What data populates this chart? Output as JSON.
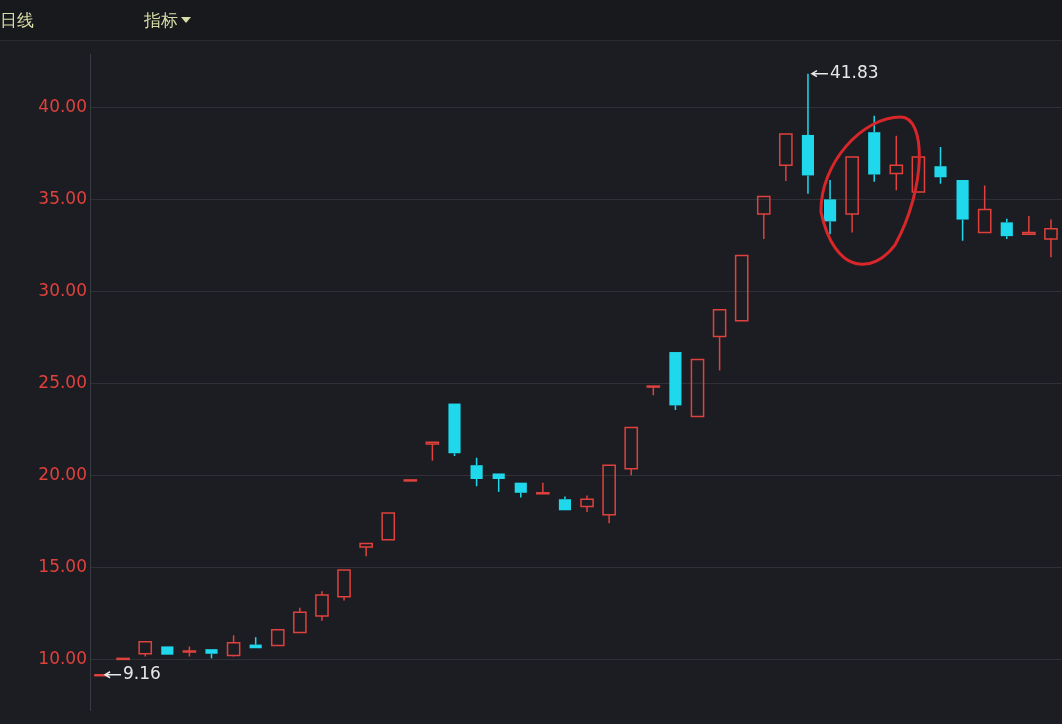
{
  "chart_data": {
    "type": "candlestick",
    "title": "日线",
    "annotations": [
      "指标",
      "41.83",
      "9.16"
    ],
    "categories": [
      null,
      null,
      null,
      null,
      null,
      null,
      null,
      null,
      null,
      null,
      null,
      null,
      null,
      null,
      null,
      null,
      null,
      null,
      null,
      null,
      null,
      null,
      null,
      null,
      null,
      null,
      null,
      null,
      null,
      null,
      null,
      null,
      null,
      null,
      null,
      null,
      null,
      null,
      null,
      null,
      null,
      null,
      null,
      null
    ],
    "ohlc": [
      [
        9.16,
        9.16,
        9.16,
        9.16
      ],
      [
        10.05,
        10.05,
        10.05,
        10.05
      ],
      [
        10.3,
        10.95,
        10.15,
        10.95
      ],
      [
        10.7,
        10.7,
        10.25,
        10.25
      ],
      [
        10.4,
        10.7,
        10.15,
        10.45
      ],
      [
        10.55,
        10.55,
        10.05,
        10.3
      ],
      [
        10.2,
        11.3,
        10.15,
        10.9
      ],
      [
        10.8,
        11.2,
        10.6,
        10.6
      ],
      [
        10.75,
        11.6,
        10.75,
        11.6
      ],
      [
        11.45,
        12.8,
        11.45,
        12.55
      ],
      [
        12.35,
        13.7,
        12.1,
        13.5
      ],
      [
        13.4,
        14.85,
        13.2,
        14.85
      ],
      [
        16.1,
        16.3,
        15.6,
        16.3
      ],
      [
        16.5,
        17.95,
        16.5,
        17.95
      ],
      [
        19.75,
        19.75,
        19.75,
        19.75
      ],
      [
        21.7,
        21.8,
        20.8,
        21.8
      ],
      [
        23.9,
        23.9,
        21.05,
        21.2
      ],
      [
        20.55,
        20.95,
        19.4,
        19.8
      ],
      [
        20.1,
        20.1,
        19.1,
        19.8
      ],
      [
        19.6,
        19.6,
        18.8,
        19.05
      ],
      [
        19.0,
        19.6,
        19.0,
        19.05
      ],
      [
        18.7,
        18.85,
        18.1,
        18.1
      ],
      [
        18.3,
        18.9,
        18.0,
        18.7
      ],
      [
        17.85,
        20.55,
        17.4,
        20.55
      ],
      [
        20.35,
        22.6,
        20.0,
        22.6
      ],
      [
        24.8,
        24.85,
        24.35,
        24.85
      ],
      [
        26.7,
        26.7,
        23.55,
        23.8
      ],
      [
        23.2,
        26.3,
        23.2,
        26.3
      ],
      [
        27.55,
        29.0,
        25.7,
        29.0
      ],
      [
        28.4,
        31.95,
        28.4,
        31.95
      ],
      [
        34.2,
        35.15,
        32.85,
        35.15
      ],
      [
        36.85,
        38.55,
        36.0,
        38.55
      ],
      [
        38.5,
        41.83,
        35.3,
        36.3
      ],
      [
        35.0,
        36.05,
        33.1,
        33.8
      ],
      [
        34.2,
        37.3,
        33.2,
        37.3
      ],
      [
        38.65,
        39.55,
        35.95,
        36.35
      ],
      [
        36.4,
        38.45,
        35.5,
        36.85
      ],
      [
        35.4,
        37.3,
        35.4,
        37.3
      ],
      [
        36.8,
        37.85,
        35.85,
        36.2
      ],
      [
        36.05,
        36.05,
        32.75,
        33.9
      ],
      [
        33.2,
        35.75,
        33.2,
        34.45
      ],
      [
        33.75,
        33.95,
        32.85,
        33.0
      ],
      [
        33.1,
        34.1,
        33.1,
        33.2
      ],
      [
        32.85,
        33.9,
        31.85,
        33.4
      ]
    ],
    "colors": [
      "#e0413c",
      "#e0413c",
      "#e0413c",
      "#1fd8ec",
      "#e0413c",
      "#1fd8ec",
      "#e0413c",
      "#1fd8ec",
      "#e0413c",
      "#e0413c",
      "#e0413c",
      "#e0413c",
      "#e0413c",
      "#e0413c",
      "#e0413c",
      "#e0413c",
      "#1fd8ec",
      "#1fd8ec",
      "#1fd8ec",
      "#1fd8ec",
      "#e0413c",
      "#1fd8ec",
      "#e0413c",
      "#e0413c",
      "#e0413c",
      "#e0413c",
      "#1fd8ec",
      "#e0413c",
      "#e0413c",
      "#e0413c",
      "#e0413c",
      "#e0413c",
      "#1fd8ec",
      "#1fd8ec",
      "#e0413c",
      "#1fd8ec",
      "#e0413c",
      "#e0413c",
      "#1fd8ec",
      "#1fd8ec",
      "#e0413c",
      "#1fd8ec",
      "#e0413c",
      "#e0413c"
    ],
    "ylim": [
      7.2,
      42.9
    ],
    "yticks": [
      {
        "value": 10,
        "label": "10.00"
      },
      {
        "value": 15,
        "label": "15.00"
      },
      {
        "value": 20,
        "label": "20.00"
      },
      {
        "value": 25,
        "label": "25.00"
      },
      {
        "value": 30,
        "label": "30.00"
      },
      {
        "value": 35,
        "label": "35.00"
      },
      {
        "value": 40,
        "label": "40.00"
      }
    ],
    "grid": "y",
    "legend": false
  }
}
